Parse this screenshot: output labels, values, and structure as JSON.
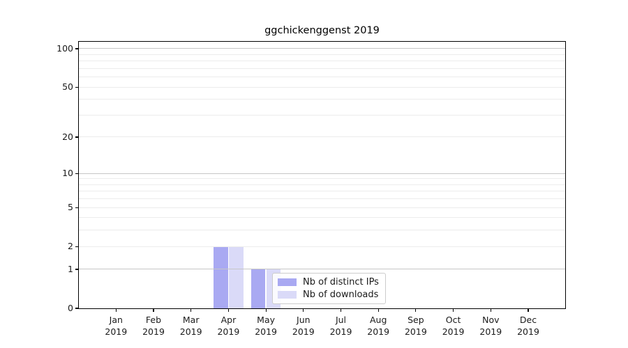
{
  "figure": {
    "title": "ggchickenggenst 2019"
  },
  "legend": {
    "items": [
      {
        "label": "Nb of distinct IPs",
        "color": "#a9a9f2"
      },
      {
        "label": "Nb of downloads",
        "color": "#dadaf8"
      }
    ]
  },
  "chart_data": {
    "type": "bar",
    "title": "ggchickenggenst 2019",
    "months": [
      "Jan",
      "Feb",
      "Mar",
      "Apr",
      "May",
      "Jun",
      "Jul",
      "Aug",
      "Sep",
      "Oct",
      "Nov",
      "Dec"
    ],
    "year": "2019",
    "categories": [
      "Jan 2019",
      "Feb 2019",
      "Mar 2019",
      "Apr 2019",
      "May 2019",
      "Jun 2019",
      "Jul 2019",
      "Aug 2019",
      "Sep 2019",
      "Oct 2019",
      "Nov 2019",
      "Dec 2019"
    ],
    "series": [
      {
        "name": "Nb of distinct IPs",
        "color": "#a9a9f2",
        "values": [
          0,
          0,
          0,
          2,
          1,
          0,
          0,
          0,
          0,
          0,
          0,
          0
        ]
      },
      {
        "name": "Nb of downloads",
        "color": "#dadaf8",
        "values": [
          0,
          0,
          0,
          2,
          1,
          0,
          0,
          0,
          0,
          0,
          0,
          0
        ]
      }
    ],
    "xlabel": "",
    "ylabel": "",
    "yscale": "log10(1+y)",
    "yticks": [
      0,
      1,
      2,
      5,
      10,
      20,
      50,
      100
    ],
    "ylim": [
      0,
      113
    ],
    "grid": {
      "on": true,
      "minor": [
        2,
        3,
        4,
        5,
        6,
        7,
        8,
        9,
        20,
        30,
        40,
        50,
        60,
        70,
        80,
        90
      ],
      "major": [
        1,
        10,
        100
      ]
    },
    "legend_position": "lower-center",
    "bars_over_grid": false
  },
  "colors": {
    "bar_ips": "#a9a9f2",
    "bar_downloads": "#dadaf8",
    "grid_minor": "#ececec",
    "grid_major": "#c6c6c6",
    "axis": "#000000",
    "text": "#1a1a1a",
    "legend_border": "#cccccc"
  }
}
